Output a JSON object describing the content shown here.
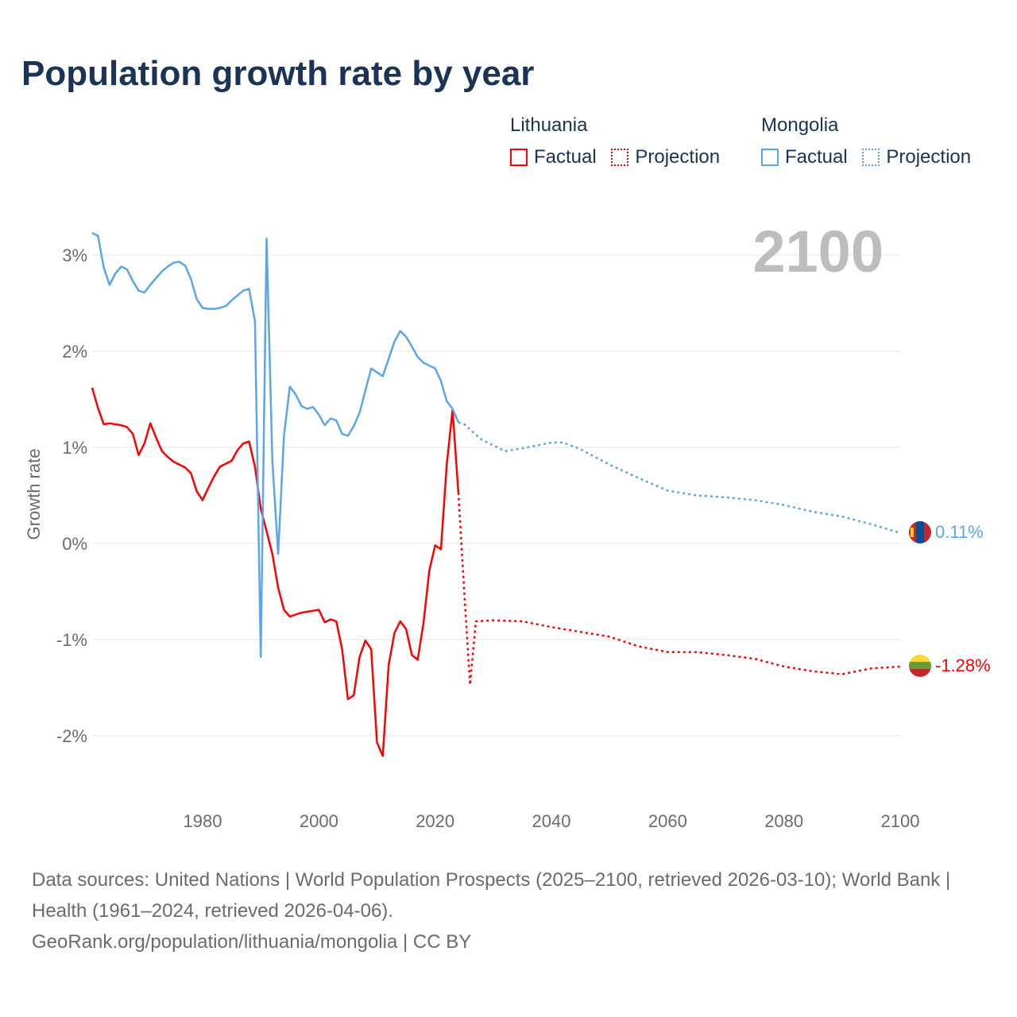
{
  "title": "Population growth rate by year",
  "legend": {
    "groups": [
      {
        "country": "Lithuania",
        "factual": "Factual",
        "projection": "Projection",
        "color": "#ff0000"
      },
      {
        "country": "Mongolia",
        "factual": "Factual",
        "projection": "Projection",
        "color": "#5ba5ea"
      }
    ]
  },
  "year_display": "2100",
  "end_labels": {
    "mongolia": "0.11%",
    "lithuania": "-1.28%"
  },
  "flag_icons": {
    "mongolia": "mongolia-flag-icon",
    "lithuania": "lithuania-flag-icon"
  },
  "footer": {
    "line1": "Data sources: United Nations | World Population Prospects (2025–2100, retrieved 2026-03-10); World Bank | Health (1961–2024, retrieved 2026-04-06).",
    "line2": "GeoRank.org/population/lithuania/mongolia | CC BY"
  },
  "chart_data": {
    "type": "line",
    "title": "Population growth rate by year",
    "xlabel": "",
    "ylabel": "Growth rate",
    "xlim": [
      1961,
      2100
    ],
    "ylim": [
      -2.7,
      3.3
    ],
    "x_ticks": [
      1980,
      2000,
      2020,
      2040,
      2060,
      2080,
      2100
    ],
    "x_tick_labels": [
      "1980",
      "2000",
      "2020",
      "2040",
      "2060",
      "2080",
      "2100"
    ],
    "y_ticks": [
      3,
      2,
      1,
      0,
      -1,
      -2
    ],
    "y_tick_labels": [
      "3%",
      "2%",
      "1%",
      "0%",
      "-1%",
      "-2%"
    ],
    "grid": true,
    "legend_position": "top-right",
    "series": [
      {
        "name": "Lithuania Factual",
        "color": "#ff0000",
        "style": "solid",
        "x": [
          1961,
          1962,
          1963,
          1964,
          1965,
          1966,
          1967,
          1968,
          1969,
          1970,
          1971,
          1972,
          1973,
          1974,
          1975,
          1976,
          1977,
          1978,
          1979,
          1980,
          1981,
          1982,
          1983,
          1984,
          1985,
          1986,
          1987,
          1988,
          1989,
          1990,
          1991,
          1992,
          1993,
          1994,
          1995,
          1996,
          1997,
          1998,
          1999,
          2000,
          2001,
          2002,
          2003,
          2004,
          2005,
          2006,
          2007,
          2008,
          2009,
          2010,
          2011,
          2012,
          2013,
          2014,
          2015,
          2016,
          2017,
          2018,
          2019,
          2020,
          2021,
          2022,
          2023,
          2024
        ],
        "y": [
          1.62,
          1.41,
          1.24,
          1.25,
          1.24,
          1.23,
          1.21,
          1.14,
          0.92,
          1.04,
          1.25,
          1.1,
          0.96,
          0.9,
          0.85,
          0.82,
          0.79,
          0.73,
          0.54,
          0.45,
          0.58,
          0.7,
          0.8,
          0.83,
          0.86,
          0.97,
          1.04,
          1.06,
          0.8,
          0.36,
          0.13,
          -0.11,
          -0.46,
          -0.69,
          -0.76,
          -0.74,
          -0.72,
          -0.71,
          -0.7,
          -0.69,
          -0.82,
          -0.79,
          -0.81,
          -1.1,
          -1.62,
          -1.58,
          -1.18,
          -1.01,
          -1.1,
          -2.07,
          -2.21,
          -1.27,
          -0.93,
          -0.81,
          -0.89,
          -1.16,
          -1.21,
          -0.83,
          -0.28,
          -0.02,
          -0.06,
          0.82,
          1.39,
          0.53
        ]
      },
      {
        "name": "Lithuania Projection",
        "color": "#ff0000",
        "style": "dotted",
        "x": [
          2024,
          2025,
          2026,
          2027,
          2030,
          2035,
          2040,
          2045,
          2050,
          2055,
          2060,
          2065,
          2070,
          2075,
          2080,
          2085,
          2090,
          2095,
          2100
        ],
        "y": [
          0.53,
          -0.5,
          -1.47,
          -0.81,
          -0.8,
          -0.81,
          -0.87,
          -0.92,
          -0.97,
          -1.07,
          -1.13,
          -1.13,
          -1.16,
          -1.2,
          -1.28,
          -1.33,
          -1.36,
          -1.3,
          -1.28
        ]
      },
      {
        "name": "Mongolia Factual",
        "color": "#5ba5ea",
        "style": "solid",
        "x": [
          1961,
          1962,
          1963,
          1964,
          1965,
          1966,
          1967,
          1968,
          1969,
          1970,
          1971,
          1972,
          1973,
          1974,
          1975,
          1976,
          1977,
          1978,
          1979,
          1980,
          1981,
          1982,
          1983,
          1984,
          1985,
          1986,
          1987,
          1988,
          1989,
          1990,
          1991,
          1992,
          1993,
          1994,
          1995,
          1996,
          1997,
          1998,
          1999,
          2000,
          2001,
          2002,
          2003,
          2004,
          2005,
          2006,
          2007,
          2008,
          2009,
          2010,
          2011,
          2012,
          2013,
          2014,
          2015,
          2016,
          2017,
          2018,
          2019,
          2020,
          2021,
          2022,
          2023,
          2024
        ],
        "y": [
          3.23,
          3.2,
          2.87,
          2.69,
          2.81,
          2.88,
          2.85,
          2.73,
          2.63,
          2.61,
          2.69,
          2.76,
          2.83,
          2.88,
          2.92,
          2.93,
          2.89,
          2.75,
          2.54,
          2.45,
          2.44,
          2.44,
          2.45,
          2.47,
          2.53,
          2.58,
          2.63,
          2.65,
          2.31,
          -1.18,
          3.17,
          0.86,
          -0.11,
          1.12,
          1.63,
          1.55,
          1.43,
          1.4,
          1.42,
          1.34,
          1.23,
          1.3,
          1.28,
          1.14,
          1.12,
          1.22,
          1.36,
          1.59,
          1.82,
          1.78,
          1.74,
          1.92,
          2.1,
          2.21,
          2.15,
          2.05,
          1.94,
          1.88,
          1.85,
          1.82,
          1.69,
          1.48,
          1.4,
          1.26
        ]
      },
      {
        "name": "Mongolia Projection",
        "color": "#5ba5ea",
        "style": "dotted",
        "x": [
          2024,
          2025,
          2028,
          2032,
          2036,
          2040,
          2042,
          2045,
          2050,
          2055,
          2060,
          2065,
          2070,
          2075,
          2080,
          2085,
          2090,
          2095,
          2100
        ],
        "y": [
          1.26,
          1.24,
          1.08,
          0.96,
          1.0,
          1.05,
          1.05,
          0.98,
          0.82,
          0.68,
          0.55,
          0.5,
          0.48,
          0.45,
          0.4,
          0.33,
          0.28,
          0.2,
          0.11
        ]
      }
    ]
  }
}
